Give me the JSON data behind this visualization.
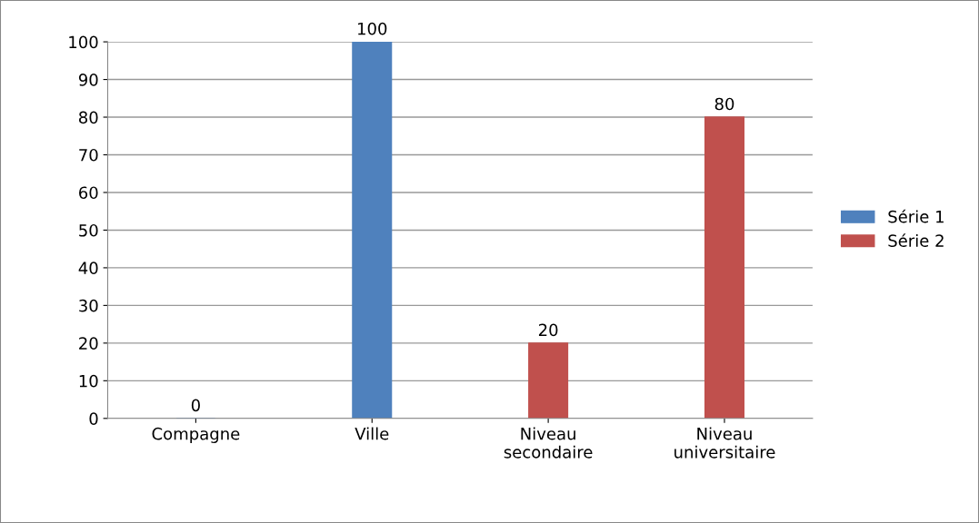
{
  "chart_data": {
    "type": "bar",
    "categories": [
      "Compagne",
      "Ville",
      "Niveau secondaire",
      "Niveau universitaire"
    ],
    "series": [
      {
        "name": "Série 1",
        "color": "#4f81bd",
        "values": [
          0,
          100,
          null,
          null
        ]
      },
      {
        "name": "Série 2",
        "color": "#c0504d",
        "values": [
          null,
          null,
          20,
          80
        ]
      }
    ],
    "ylim": [
      0,
      100
    ],
    "yticks": [
      0,
      10,
      20,
      30,
      40,
      50,
      60,
      70,
      80,
      90,
      100
    ],
    "grid": "y",
    "legend": "right",
    "data_labels": true
  }
}
